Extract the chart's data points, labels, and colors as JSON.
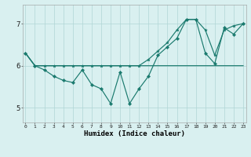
{
  "xlabel": "Humidex (Indice chaleur)",
  "x_values": [
    0,
    1,
    2,
    3,
    4,
    5,
    6,
    7,
    8,
    9,
    10,
    11,
    12,
    13,
    14,
    15,
    16,
    17,
    18,
    19,
    20,
    21,
    22,
    23
  ],
  "y_main": [
    6.3,
    6.0,
    5.9,
    5.75,
    5.65,
    5.6,
    5.9,
    5.55,
    5.45,
    5.1,
    5.85,
    5.1,
    5.45,
    5.75,
    6.25,
    6.45,
    6.65,
    7.1,
    7.1,
    6.3,
    6.05,
    6.9,
    6.75,
    7.0
  ],
  "y_upper": [
    6.3,
    6.0,
    6.0,
    6.0,
    6.0,
    6.0,
    6.0,
    6.0,
    6.0,
    6.0,
    6.0,
    6.0,
    6.0,
    6.15,
    6.35,
    6.55,
    6.85,
    7.1,
    7.1,
    6.85,
    6.25,
    6.85,
    6.95,
    7.0
  ],
  "y_flat": [
    6.3,
    6.0,
    6.0,
    6.0,
    6.0,
    6.0,
    6.0,
    6.0,
    6.0,
    6.0,
    6.0,
    6.0,
    6.0,
    6.0,
    6.0,
    6.0,
    6.0,
    6.0,
    6.0,
    6.0,
    6.0,
    6.0,
    6.0,
    6.0
  ],
  "line_color": "#1a7a6e",
  "bg_color": "#d9f0f0",
  "grid_color": "#b0d5d5",
  "yticks": [
    5,
    6,
    7
  ],
  "xticks": [
    0,
    1,
    2,
    3,
    4,
    5,
    6,
    7,
    8,
    9,
    10,
    11,
    12,
    13,
    14,
    15,
    16,
    17,
    18,
    19,
    20,
    21,
    22,
    23
  ],
  "ylim": [
    4.65,
    7.45
  ],
  "xlim": [
    -0.3,
    23.3
  ]
}
